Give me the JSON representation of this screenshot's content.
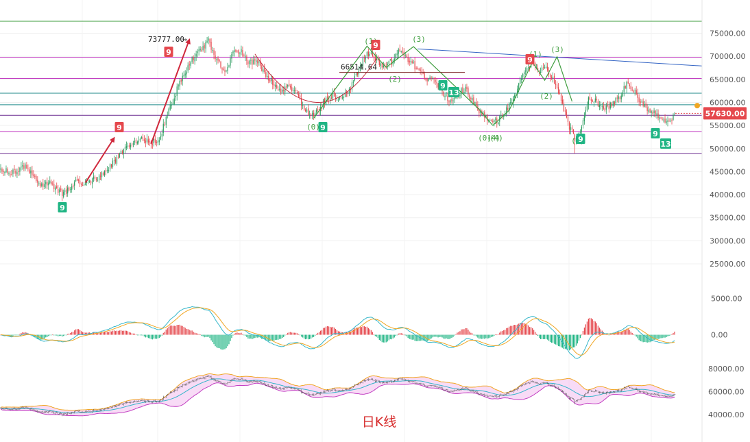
{
  "chart_data": [
    {
      "type": "candlestick",
      "caption": "日K线",
      "last_price": "57630.00",
      "y_ticks": [
        "75000.00",
        "70000.00",
        "65000.00",
        "60000.00",
        "55000.00",
        "50000.00",
        "45000.00",
        "40000.00",
        "35000.00",
        "30000.00",
        "25000.00"
      ],
      "ylim": [
        20000,
        78000
      ],
      "high_label": "73777.00",
      "level_label": "66514.64",
      "horizontal_levels": [
        {
          "price": 77600,
          "color": "#3e9d3e"
        },
        {
          "price": 69800,
          "color": "#c23fc2"
        },
        {
          "price": 65200,
          "color": "#c23fc2"
        },
        {
          "price": 62000,
          "color": "#1f8a8a"
        },
        {
          "price": 59500,
          "color": "#1f8a8a"
        },
        {
          "price": 57200,
          "color": "#6a2a8f"
        },
        {
          "price": 53700,
          "color": "#c23fc2"
        },
        {
          "price": 48900,
          "color": "#6a2a8f"
        }
      ],
      "wave_labels": [
        "(1)",
        "(2)",
        "(3)",
        "(4)",
        "(0)",
        "(1)",
        "(2)",
        "(3)",
        "(4)",
        "(0)",
        "(0)"
      ],
      "sequential_counts": [
        {
          "label": "9",
          "kind": "buy"
        },
        {
          "label": "9",
          "kind": "sell"
        },
        {
          "label": "9",
          "kind": "sell"
        },
        {
          "label": "9",
          "kind": "buy"
        },
        {
          "label": "9",
          "kind": "sell"
        },
        {
          "label": "9",
          "kind": "buy"
        },
        {
          "label": "13",
          "kind": "buy"
        },
        {
          "label": "9",
          "kind": "sell"
        },
        {
          "label": "9",
          "kind": "buy"
        },
        {
          "label": "9",
          "kind": "buy"
        },
        {
          "label": "13",
          "kind": "buy"
        }
      ],
      "price_anchors": [
        [
          0,
          45500
        ],
        [
          8,
          44800
        ],
        [
          18,
          46000
        ],
        [
          25,
          43500
        ],
        [
          30,
          41800
        ],
        [
          37,
          42500
        ],
        [
          45,
          40000
        ],
        [
          55,
          42600
        ],
        [
          65,
          42800
        ],
        [
          75,
          44300
        ],
        [
          85,
          48000
        ],
        [
          95,
          51300
        ],
        [
          105,
          52000
        ],
        [
          115,
          51200
        ],
        [
          122,
          57500
        ],
        [
          130,
          63500
        ],
        [
          138,
          68500
        ],
        [
          145,
          71000
        ],
        [
          152,
          73300
        ],
        [
          158,
          69000
        ],
        [
          164,
          66800
        ],
        [
          170,
          70500
        ],
        [
          176,
          71200
        ],
        [
          182,
          68500
        ],
        [
          188,
          69000
        ],
        [
          194,
          66000
        ],
        [
          200,
          64000
        ],
        [
          206,
          62500
        ],
        [
          212,
          63500
        ],
        [
          218,
          61000
        ],
        [
          224,
          58000
        ],
        [
          229,
          56800
        ],
        [
          236,
          60000
        ],
        [
          243,
          61800
        ],
        [
          249,
          60500
        ],
        [
          256,
          63000
        ],
        [
          262,
          67200
        ],
        [
          268,
          71000
        ],
        [
          274,
          69500
        ],
        [
          280,
          68000
        ],
        [
          286,
          68800
        ],
        [
          292,
          71500
        ],
        [
          298,
          69000
        ],
        [
          304,
          67600
        ],
        [
          310,
          65200
        ],
        [
          316,
          64800
        ],
        [
          322,
          62800
        ],
        [
          328,
          60200
        ],
        [
          334,
          61800
        ],
        [
          340,
          63000
        ],
        [
          346,
          60000
        ],
        [
          352,
          57500
        ],
        [
          358,
          55600
        ],
        [
          364,
          56200
        ],
        [
          370,
          58400
        ],
        [
          376,
          61500
        ],
        [
          382,
          66500
        ],
        [
          388,
          68200
        ],
        [
          394,
          66800
        ],
        [
          398,
          67800
        ],
        [
          404,
          65000
        ],
        [
          410,
          61000
        ],
        [
          415,
          55400
        ],
        [
          420,
          52300
        ],
        [
          424,
          54200
        ],
        [
          430,
          61000
        ],
        [
          436,
          60000
        ],
        [
          442,
          58600
        ],
        [
          448,
          59600
        ],
        [
          454,
          61800
        ],
        [
          458,
          64300
        ],
        [
          462,
          63000
        ],
        [
          468,
          59800
        ],
        [
          474,
          58400
        ],
        [
          479,
          57600
        ],
        [
          484,
          56800
        ],
        [
          488,
          55700
        ],
        [
          493,
          57600
        ]
      ],
      "indicators": {
        "macd_ticks": [
          "5000.00",
          "0.00"
        ],
        "macd_zero_label": "0.00",
        "bollinger_ticks": [
          "80000.00",
          "60000.00",
          "40000.00"
        ]
      }
    }
  ],
  "colors": {
    "up": "#2f9e62",
    "down": "#e5484d",
    "macd_up": "#e5484d",
    "macd_down": "#20b584",
    "dif": "#34b6c9",
    "dea": "#f0a623",
    "boll_fill": "#f3c3f0",
    "boll_band": "#e3a4dc",
    "boll_upper": "#f0a623",
    "boll_mid": "#34b6c9",
    "wave": "#3e9d3e",
    "trend": "#3364c4",
    "arc": "#c23040",
    "arrow": "#d0283c",
    "last_price_bg": "#e5484d",
    "cursor_dot": "#f0a623"
  }
}
